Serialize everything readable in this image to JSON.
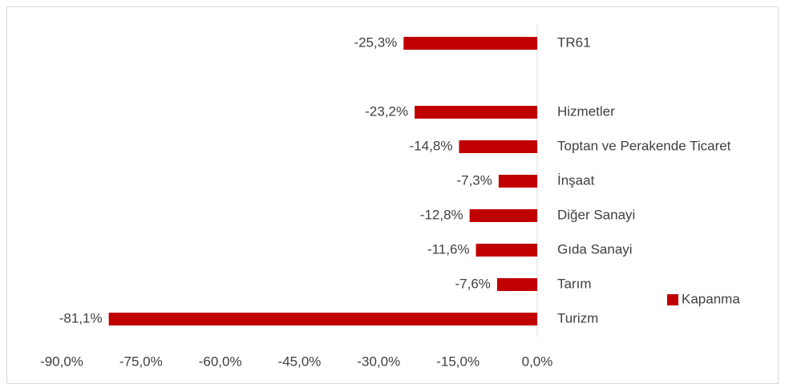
{
  "chart_data": {
    "type": "bar",
    "orientation": "horizontal",
    "categories": [
      "TR61",
      null,
      "Hizmetler",
      "Toptan ve Perakende Ticaret",
      "İnşaat",
      "Diğer Sanayi",
      "Gıda Sanayi",
      "Tarım",
      "Turizm"
    ],
    "series": [
      {
        "name": "Kapanma",
        "color": "#c00000",
        "values": [
          -25.3,
          null,
          -23.2,
          -14.8,
          -7.3,
          -12.8,
          -11.6,
          -7.6,
          -81.1
        ],
        "value_labels": [
          "-25,3%",
          null,
          "-23,2%",
          "-14,8%",
          "-7,3%",
          "-12,8%",
          "-11,6%",
          "-7,6%",
          "-81,1%"
        ]
      }
    ],
    "xlim": [
      -90,
      0
    ],
    "xticks": [
      {
        "value": -90,
        "label": "-90,0%"
      },
      {
        "value": -75,
        "label": "-75,0%"
      },
      {
        "value": -60,
        "label": "-60,0%"
      },
      {
        "value": -45,
        "label": "-45,0%"
      },
      {
        "value": -30,
        "label": "-30,0%"
      },
      {
        "value": -15,
        "label": "-15,0%"
      },
      {
        "value": 0,
        "label": "0,0%"
      }
    ],
    "legend": "right"
  }
}
